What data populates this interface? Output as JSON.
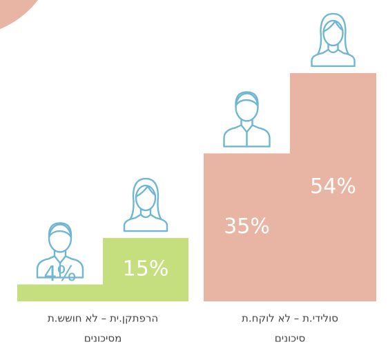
{
  "chart_data": {
    "type": "bar",
    "categories": [
      [
        "הרפתקן.ית – לא חושש.ת",
        "מסיכונים"
      ],
      [
        "סולידי.ת – לא לוקח.ת",
        "סיכונים"
      ]
    ],
    "category_colors": [
      "#c5df7e",
      "#e8b5a5"
    ],
    "series": [
      {
        "values": [
          4,
          35
        ],
        "value_labels": [
          "4%",
          "35%"
        ]
      },
      {
        "values": [
          15,
          54
        ],
        "value_labels": [
          "15%",
          "54%"
        ]
      }
    ],
    "ylim": [
      0,
      60
    ]
  }
}
